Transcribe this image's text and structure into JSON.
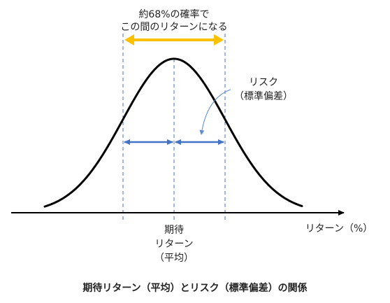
{
  "annotations": {
    "range_line1": "約68%の確率で",
    "range_line2": "この間のリターンになる",
    "risk_line1": "リスク",
    "risk_line2": "（標準偏差）",
    "mean_line1": "期待",
    "mean_line2": "リターン",
    "mean_line3": "（平均）",
    "axis_label": "リターン（%）"
  },
  "caption": "期待リターン（平均）とリスク（標準偏差）の関係",
  "colors": {
    "range_arrow": "#FFC000",
    "sigma_arrow": "#4472C4",
    "guide_line": "#4472C4",
    "curve": "#000000",
    "axis": "#000000"
  }
}
